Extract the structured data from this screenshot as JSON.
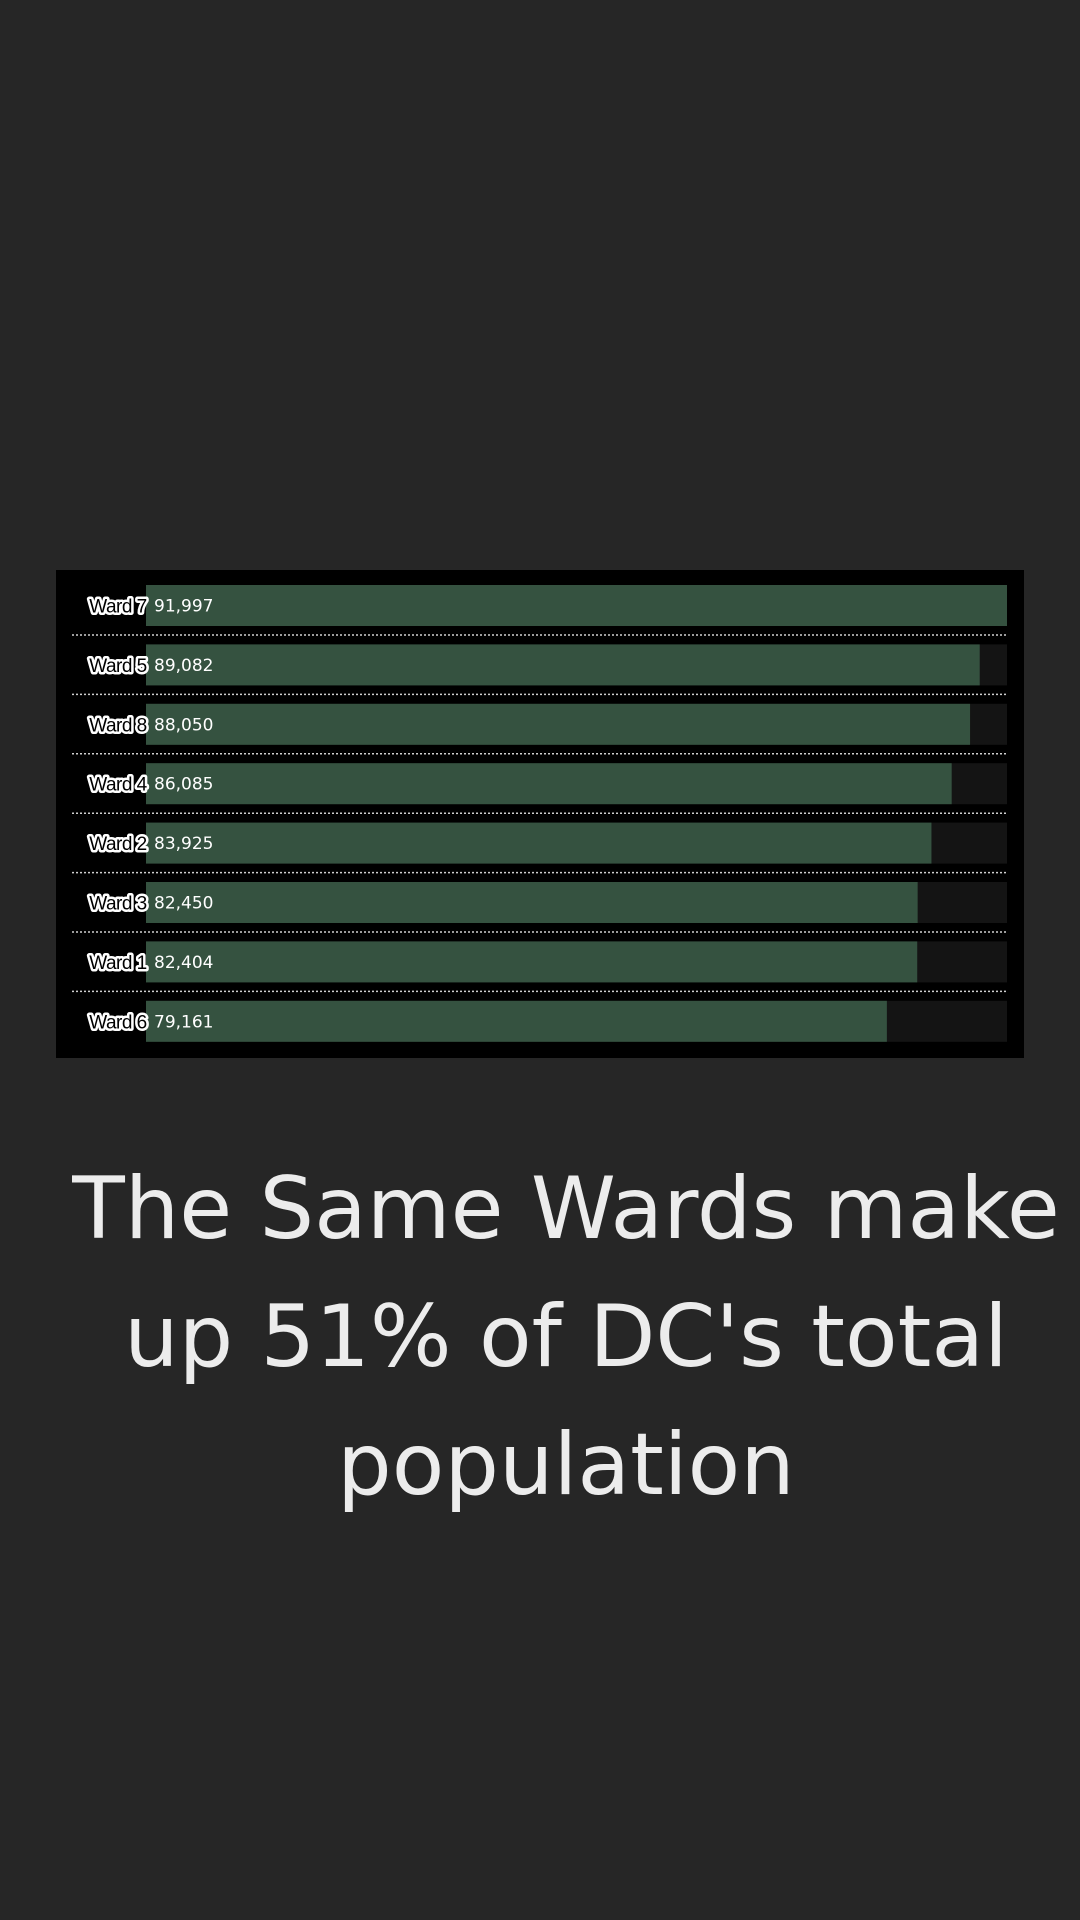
{
  "chart_data": {
    "type": "bar",
    "orientation": "horizontal",
    "categories": [
      "Ward 7",
      "Ward 5",
      "Ward 8",
      "Ward 4",
      "Ward 2",
      "Ward 3",
      "Ward 1",
      "Ward 6"
    ],
    "values": [
      91997,
      89082,
      88050,
      86085,
      83925,
      82450,
      82404,
      79161
    ],
    "value_labels": [
      "91,997",
      "89,082",
      "88,050",
      "86,085",
      "83,925",
      "82,450",
      "82,404",
      "79,161"
    ],
    "xlim": [
      0,
      91997
    ],
    "grid": false,
    "legend": "none"
  },
  "colors": {
    "background": "#262626",
    "panel": "#000000",
    "bar": "#355240",
    "track": "#141414",
    "divider": "#cfcfcf",
    "headline": "#ececec"
  },
  "headline": {
    "text": "The Same Wards make up 51% of DC's total population"
  }
}
